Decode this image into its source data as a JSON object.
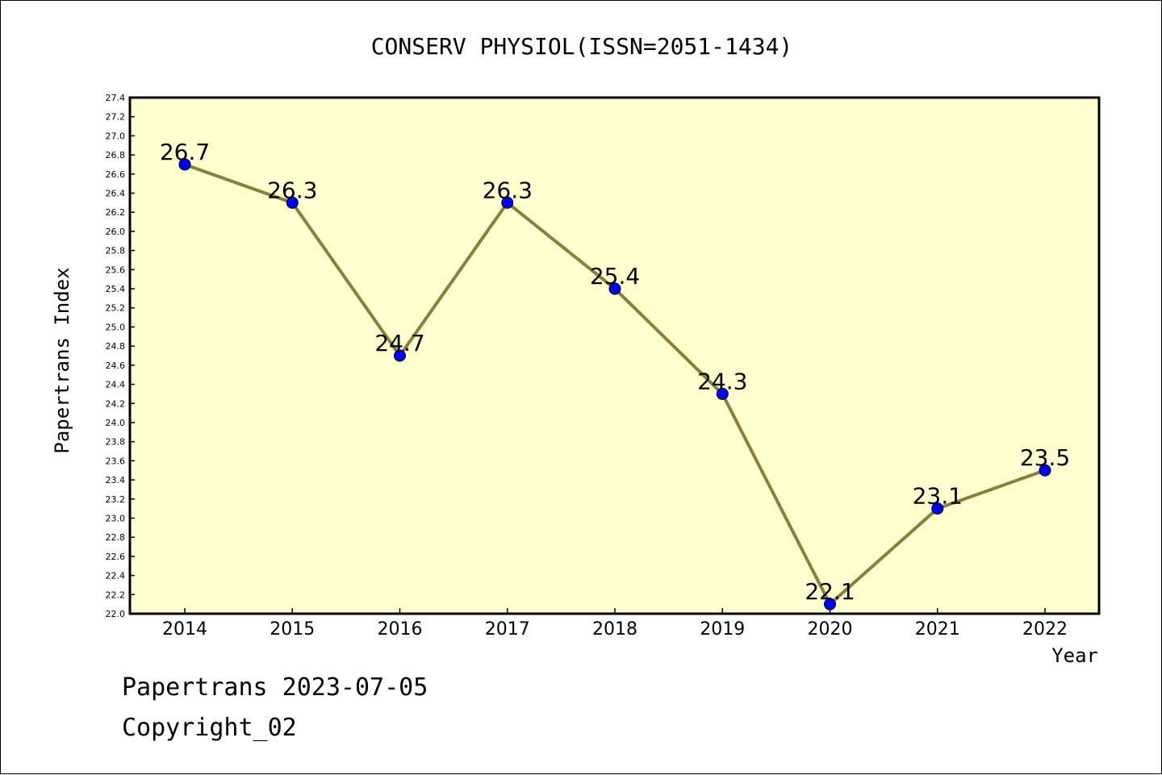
{
  "chart_data": {
    "type": "line",
    "title": "CONSERV PHYSIOL(ISSN=2051-1434)",
    "xlabel": "Year",
    "ylabel": "Papertrans Index",
    "categories": [
      "2014",
      "2015",
      "2016",
      "2017",
      "2018",
      "2019",
      "2020",
      "2021",
      "2022"
    ],
    "series": [
      {
        "values": [
          26.7,
          26.3,
          24.7,
          26.3,
          25.4,
          24.3,
          22.1,
          23.1,
          23.5
        ],
        "data_labels": [
          "26.7",
          "26.3",
          "24.7",
          "26.3",
          "25.4",
          "24.3",
          "22.1",
          "23.1",
          "23.5"
        ],
        "line_color": "#8b7d3a",
        "marker_color": "#0000ff"
      }
    ],
    "ylim": [
      22.0,
      27.4
    ],
    "y_ticks": [
      "22.0",
      "22.2",
      "22.4",
      "22.6",
      "22.8",
      "23.0",
      "23.2",
      "23.4",
      "23.6",
      "23.8",
      "24.0",
      "24.2",
      "24.4",
      "24.6",
      "24.8",
      "25.0",
      "25.2",
      "25.4",
      "25.6",
      "25.8",
      "26.0",
      "26.2",
      "26.4",
      "26.6",
      "26.8",
      "27.0",
      "27.2",
      "27.4"
    ],
    "grid": false,
    "plot_background": "#ffffd0"
  },
  "footer": {
    "line1": "Papertrans 2023-07-05",
    "line2": "Copyright_02"
  }
}
